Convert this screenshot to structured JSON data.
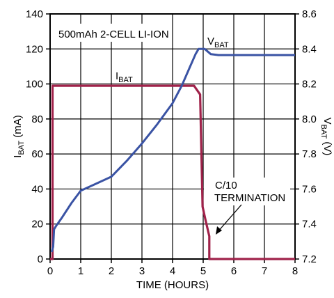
{
  "chart_data": {
    "type": "line",
    "title": "500mAh 2-CELL LI-ION",
    "xlabel": "TIME (HOURS)",
    "ylabel_left": {
      "main": "I",
      "sub": "BAT",
      "unit": " (mA)"
    },
    "ylabel_right": {
      "main": "V",
      "sub": "BAT",
      "unit": " (V)"
    },
    "xlim": [
      0,
      8
    ],
    "ylim_left": [
      0,
      140
    ],
    "ylim_right": [
      7.2,
      8.6
    ],
    "x_ticks": [
      "0",
      "1",
      "2",
      "3",
      "4",
      "5",
      "6",
      "7",
      "8"
    ],
    "y_left_ticks": [
      "0",
      "20",
      "40",
      "60",
      "80",
      "100",
      "120",
      "140"
    ],
    "y_right_ticks": [
      "7.2",
      "7.4",
      "7.6",
      "7.8",
      "8.0",
      "8.2",
      "8.4",
      "8.6"
    ],
    "grid": true,
    "series": [
      {
        "name": "I_BAT",
        "label_main": "I",
        "label_sub": "BAT",
        "axis": "left",
        "color": "#a0224a",
        "x": [
          0.0,
          0.08,
          0.08,
          4.7,
          4.9,
          4.98,
          5.08,
          5.2,
          5.2,
          8.0
        ],
        "y": [
          0,
          0,
          99,
          99,
          94,
          30,
          22,
          13,
          0,
          0
        ]
      },
      {
        "name": "V_BAT",
        "label_main": "V",
        "label_sub": "BAT",
        "axis": "right",
        "color": "#3a53a4",
        "x": [
          0.05,
          0.1,
          0.13,
          0.2,
          0.4,
          0.7,
          1.0,
          1.5,
          2.0,
          2.5,
          3.0,
          3.5,
          4.0,
          4.3,
          4.55,
          4.75,
          4.85,
          5.05,
          5.25,
          5.5,
          6.0,
          6.5,
          7.0,
          7.5,
          8.0
        ],
        "y": [
          7.24,
          7.27,
          7.37,
          7.39,
          7.44,
          7.52,
          7.59,
          7.63,
          7.67,
          7.76,
          7.86,
          7.97,
          8.09,
          8.19,
          8.29,
          8.37,
          8.4,
          8.4,
          8.37,
          8.365,
          8.365,
          8.365,
          8.365,
          8.365,
          8.365
        ]
      }
    ],
    "annotations": [
      "C/10",
      "TERMINATION"
    ]
  }
}
